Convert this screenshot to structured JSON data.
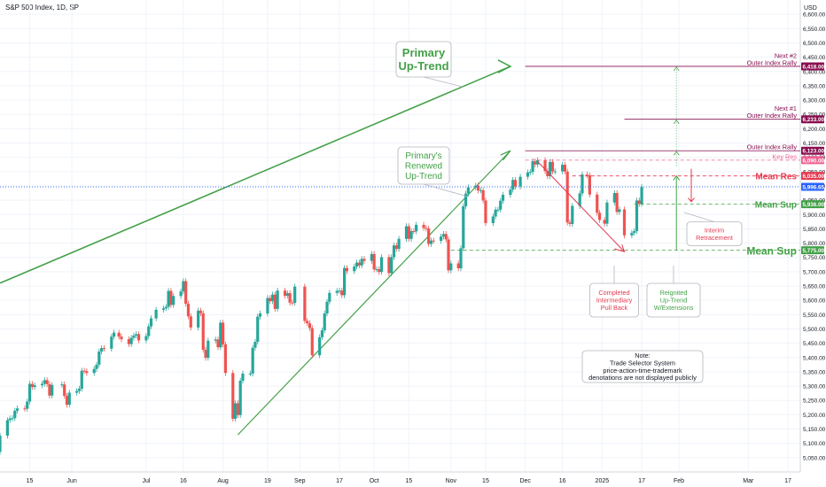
{
  "title": "S&P 500 Index, 1D, SP",
  "currency": "USD",
  "chart_data": {
    "type": "candlestick",
    "ylim": [
      5000,
      6650
    ],
    "y_ticks": [
      6600,
      6550,
      6500,
      6450,
      6400,
      6350,
      6300,
      6250,
      6200,
      6150,
      6100,
      6050,
      6000,
      5950,
      5900,
      5850,
      5800,
      5750,
      5700,
      5650,
      5600,
      5550,
      5500,
      5450,
      5400,
      5350,
      5300,
      5250,
      5200,
      5150,
      5100,
      5050
    ],
    "x_ticks": [
      "15",
      "Jun",
      "Jul",
      "16",
      "Aug",
      "19",
      "Sep",
      "17",
      "Oct",
      "15",
      "Nov",
      "15",
      "Dec",
      "16",
      "2025",
      "17",
      "Feb",
      "Mar",
      "17"
    ],
    "x_tick_dates": [
      "2024-05-15",
      "2024-06-01",
      "2024-07-01",
      "2024-07-16",
      "2024-08-01",
      "2024-08-19",
      "2024-09-01",
      "2024-09-17",
      "2024-10-01",
      "2024-10-15",
      "2024-11-01",
      "2024-11-15",
      "2024-12-01",
      "2024-12-16",
      "2025-01-01",
      "2025-01-17",
      "2025-02-01",
      "2025-03-01",
      "2025-03-17"
    ],
    "x_range": [
      "2024-05-03",
      "2025-03-22"
    ],
    "candles": [
      [
        "2024-05-03",
        5070,
        5127
      ],
      [
        "2024-05-06",
        5127,
        5181
      ],
      [
        "2024-05-07",
        5181,
        5187
      ],
      [
        "2024-05-08",
        5187,
        5188
      ],
      [
        "2024-05-09",
        5188,
        5214
      ],
      [
        "2024-05-10",
        5214,
        5222
      ],
      [
        "2024-05-13",
        5222,
        5221
      ],
      [
        "2024-05-14",
        5221,
        5246
      ],
      [
        "2024-05-15",
        5246,
        5308
      ],
      [
        "2024-05-16",
        5308,
        5297
      ],
      [
        "2024-05-17",
        5297,
        5303
      ],
      [
        "2024-05-20",
        5303,
        5308
      ],
      [
        "2024-05-21",
        5308,
        5321
      ],
      [
        "2024-05-22",
        5321,
        5307
      ],
      [
        "2024-05-23",
        5307,
        5267
      ],
      [
        "2024-05-24",
        5267,
        5304
      ],
      [
        "2024-05-28",
        5304,
        5306
      ],
      [
        "2024-05-29",
        5306,
        5266
      ],
      [
        "2024-05-30",
        5266,
        5235
      ],
      [
        "2024-05-31",
        5235,
        5277
      ],
      [
        "2024-06-03",
        5277,
        5283
      ],
      [
        "2024-06-04",
        5283,
        5291
      ],
      [
        "2024-06-05",
        5291,
        5354
      ],
      [
        "2024-06-06",
        5354,
        5352
      ],
      [
        "2024-06-07",
        5352,
        5346
      ],
      [
        "2024-06-10",
        5346,
        5360
      ],
      [
        "2024-06-11",
        5360,
        5375
      ],
      [
        "2024-06-12",
        5375,
        5421
      ],
      [
        "2024-06-13",
        5421,
        5433
      ],
      [
        "2024-06-14",
        5433,
        5431
      ],
      [
        "2024-06-17",
        5431,
        5473
      ],
      [
        "2024-06-18",
        5473,
        5487
      ],
      [
        "2024-06-20",
        5487,
        5473
      ],
      [
        "2024-06-21",
        5473,
        5464
      ],
      [
        "2024-06-24",
        5464,
        5447
      ],
      [
        "2024-06-25",
        5447,
        5469
      ],
      [
        "2024-06-26",
        5469,
        5477
      ],
      [
        "2024-06-27",
        5477,
        5482
      ],
      [
        "2024-06-28",
        5482,
        5460
      ],
      [
        "2024-07-01",
        5460,
        5475
      ],
      [
        "2024-07-02",
        5475,
        5509
      ],
      [
        "2024-07-03",
        5509,
        5537
      ],
      [
        "2024-07-05",
        5537,
        5567
      ],
      [
        "2024-07-08",
        5567,
        5572
      ],
      [
        "2024-07-09",
        5572,
        5577
      ],
      [
        "2024-07-10",
        5577,
        5633
      ],
      [
        "2024-07-11",
        5633,
        5584
      ],
      [
        "2024-07-12",
        5584,
        5615
      ],
      [
        "2024-07-15",
        5615,
        5631
      ],
      [
        "2024-07-16",
        5631,
        5667
      ],
      [
        "2024-07-17",
        5667,
        5588
      ],
      [
        "2024-07-18",
        5588,
        5544
      ],
      [
        "2024-07-19",
        5544,
        5505
      ],
      [
        "2024-07-22",
        5505,
        5564
      ],
      [
        "2024-07-23",
        5564,
        5555
      ],
      [
        "2024-07-24",
        5555,
        5427
      ],
      [
        "2024-07-25",
        5427,
        5399
      ],
      [
        "2024-07-26",
        5399,
        5459
      ],
      [
        "2024-07-29",
        5459,
        5463
      ],
      [
        "2024-07-30",
        5463,
        5436
      ],
      [
        "2024-07-31",
        5436,
        5522
      ],
      [
        "2024-08-01",
        5522,
        5446
      ],
      [
        "2024-08-02",
        5446,
        5346
      ],
      [
        "2024-08-05",
        5346,
        5186
      ],
      [
        "2024-08-06",
        5186,
        5240
      ],
      [
        "2024-08-07",
        5240,
        5199
      ],
      [
        "2024-08-08",
        5199,
        5319
      ],
      [
        "2024-08-09",
        5319,
        5344
      ],
      [
        "2024-08-12",
        5344,
        5344
      ],
      [
        "2024-08-13",
        5344,
        5434
      ],
      [
        "2024-08-14",
        5434,
        5455
      ],
      [
        "2024-08-15",
        5455,
        5543
      ],
      [
        "2024-08-16",
        5543,
        5554
      ],
      [
        "2024-08-19",
        5554,
        5608
      ],
      [
        "2024-08-20",
        5608,
        5597
      ],
      [
        "2024-08-21",
        5597,
        5620
      ],
      [
        "2024-08-22",
        5620,
        5570
      ],
      [
        "2024-08-23",
        5570,
        5634
      ],
      [
        "2024-08-26",
        5634,
        5616
      ],
      [
        "2024-08-27",
        5616,
        5625
      ],
      [
        "2024-08-28",
        5625,
        5592
      ],
      [
        "2024-08-29",
        5592,
        5591
      ],
      [
        "2024-08-30",
        5591,
        5648
      ],
      [
        "2024-09-03",
        5648,
        5528
      ],
      [
        "2024-09-04",
        5528,
        5520
      ],
      [
        "2024-09-05",
        5520,
        5503
      ],
      [
        "2024-09-06",
        5503,
        5408
      ],
      [
        "2024-09-09",
        5408,
        5471
      ],
      [
        "2024-09-10",
        5471,
        5495
      ],
      [
        "2024-09-11",
        5495,
        5554
      ],
      [
        "2024-09-12",
        5554,
        5595
      ],
      [
        "2024-09-13",
        5595,
        5626
      ],
      [
        "2024-09-16",
        5626,
        5633
      ],
      [
        "2024-09-17",
        5633,
        5634
      ],
      [
        "2024-09-18",
        5634,
        5618
      ],
      [
        "2024-09-19",
        5618,
        5713
      ],
      [
        "2024-09-20",
        5713,
        5702
      ],
      [
        "2024-09-23",
        5702,
        5718
      ],
      [
        "2024-09-24",
        5718,
        5732
      ],
      [
        "2024-09-25",
        5732,
        5722
      ],
      [
        "2024-09-26",
        5722,
        5745
      ],
      [
        "2024-09-27",
        5745,
        5738
      ],
      [
        "2024-09-30",
        5738,
        5762
      ],
      [
        "2024-10-01",
        5762,
        5708
      ],
      [
        "2024-10-02",
        5708,
        5709
      ],
      [
        "2024-10-03",
        5709,
        5699
      ],
      [
        "2024-10-04",
        5699,
        5751
      ],
      [
        "2024-10-07",
        5751,
        5695
      ],
      [
        "2024-10-08",
        5695,
        5751
      ],
      [
        "2024-10-09",
        5751,
        5792
      ],
      [
        "2024-10-10",
        5792,
        5780
      ],
      [
        "2024-10-11",
        5780,
        5815
      ],
      [
        "2024-10-14",
        5815,
        5859
      ],
      [
        "2024-10-15",
        5859,
        5815
      ],
      [
        "2024-10-16",
        5815,
        5842
      ],
      [
        "2024-10-17",
        5842,
        5841
      ],
      [
        "2024-10-18",
        5841,
        5864
      ],
      [
        "2024-10-21",
        5864,
        5853
      ],
      [
        "2024-10-22",
        5853,
        5851
      ],
      [
        "2024-10-23",
        5851,
        5797
      ],
      [
        "2024-10-24",
        5797,
        5809
      ],
      [
        "2024-10-25",
        5809,
        5808
      ],
      [
        "2024-10-28",
        5808,
        5823
      ],
      [
        "2024-10-29",
        5823,
        5832
      ],
      [
        "2024-10-30",
        5832,
        5813
      ],
      [
        "2024-10-31",
        5813,
        5705
      ],
      [
        "2024-11-01",
        5705,
        5729
      ],
      [
        "2024-11-04",
        5729,
        5712
      ],
      [
        "2024-11-05",
        5712,
        5782
      ],
      [
        "2024-11-06",
        5782,
        5929
      ],
      [
        "2024-11-07",
        5929,
        5973
      ],
      [
        "2024-11-08",
        5973,
        5995
      ],
      [
        "2024-11-11",
        5995,
        6001
      ],
      [
        "2024-11-12",
        6001,
        5984
      ],
      [
        "2024-11-13",
        5984,
        5985
      ],
      [
        "2024-11-14",
        5985,
        5949
      ],
      [
        "2024-11-15",
        5949,
        5870
      ],
      [
        "2024-11-18",
        5870,
        5893
      ],
      [
        "2024-11-19",
        5893,
        5917
      ],
      [
        "2024-11-20",
        5917,
        5917
      ],
      [
        "2024-11-21",
        5917,
        5948
      ],
      [
        "2024-11-22",
        5948,
        5969
      ],
      [
        "2024-11-25",
        5969,
        5987
      ],
      [
        "2024-11-26",
        5987,
        6021
      ],
      [
        "2024-11-27",
        6021,
        5998
      ],
      [
        "2024-11-29",
        5998,
        6032
      ],
      [
        "2024-12-02",
        6032,
        6047
      ],
      [
        "2024-12-03",
        6047,
        6049
      ],
      [
        "2024-12-04",
        6049,
        6086
      ],
      [
        "2024-12-05",
        6086,
        6075
      ],
      [
        "2024-12-06",
        6075,
        6090
      ],
      [
        "2024-12-09",
        6090,
        6052
      ],
      [
        "2024-12-10",
        6052,
        6034
      ],
      [
        "2024-12-11",
        6034,
        6084
      ],
      [
        "2024-12-12",
        6084,
        6051
      ],
      [
        "2024-12-13",
        6051,
        6051
      ],
      [
        "2024-12-16",
        6051,
        6074
      ],
      [
        "2024-12-17",
        6074,
        6050
      ],
      [
        "2024-12-18",
        6050,
        5872
      ],
      [
        "2024-12-19",
        5872,
        5867
      ],
      [
        "2024-12-20",
        5867,
        5930
      ],
      [
        "2024-12-23",
        5930,
        5974
      ],
      [
        "2024-12-24",
        5974,
        6040
      ],
      [
        "2024-12-26",
        6040,
        6037
      ],
      [
        "2024-12-27",
        6037,
        5970
      ],
      [
        "2024-12-30",
        5970,
        5906
      ],
      [
        "2024-12-31",
        5906,
        5881
      ],
      [
        "2025-01-02",
        5881,
        5868
      ],
      [
        "2025-01-03",
        5868,
        5942
      ],
      [
        "2025-01-06",
        5942,
        5975
      ],
      [
        "2025-01-07",
        5975,
        5909
      ],
      [
        "2025-01-08",
        5909,
        5918
      ],
      [
        "2025-01-10",
        5918,
        5827
      ],
      [
        "2025-01-13",
        5827,
        5836
      ],
      [
        "2025-01-14",
        5836,
        5842
      ],
      [
        "2025-01-15",
        5842,
        5949
      ],
      [
        "2025-01-16",
        5949,
        5937
      ],
      [
        "2025-01-17",
        5937,
        5996
      ]
    ],
    "levels": [
      {
        "label": "Outer Index Rally",
        "prefix": "Next #2",
        "value": 6418,
        "badge": "6,418.00",
        "color": "#880e4f",
        "style": "solid",
        "x_from": "2024-12-01"
      },
      {
        "label": "Outer Index Rally",
        "prefix": "Next #1",
        "value": 6233,
        "badge": "6,233.00",
        "color": "#880e4f",
        "style": "solid",
        "x_from": "2025-01-10"
      },
      {
        "label": "Outer Index Rally",
        "prefix": "",
        "value": 6123,
        "badge": "6,123.00",
        "color": "#880e4f",
        "style": "solid",
        "x_from": "2024-12-01"
      },
      {
        "label": "Key Res",
        "prefix": "",
        "value": 6090,
        "badge": "6,090.00",
        "color": "#f06292",
        "style": "dashed",
        "x_from": "2024-12-01"
      },
      {
        "label": "Mean Res",
        "prefix": "",
        "value": 6035,
        "badge": "6,035.00",
        "color": "#e53950",
        "style": "dashed",
        "x_from": "2024-12-20"
      },
      {
        "label": "",
        "prefix": "",
        "value": 5996.65,
        "badge": "5,996.65",
        "color": "#2962ff",
        "style": "dotted",
        "x_from": "2024-05-03"
      },
      {
        "label": "Mean Sup",
        "prefix": "",
        "value": 5936,
        "badge": "5,936.00",
        "color": "#43a047",
        "style": "dashed",
        "x_from": "2025-01-14"
      },
      {
        "label": "Mean Sup",
        "prefix": "",
        "value": 5775,
        "badge": "5,775.00",
        "color": "#43a047",
        "style": "dashed",
        "x_from": "2024-11-01"
      }
    ],
    "callouts": [
      {
        "text": [
          "Primary",
          "Up-Trend"
        ],
        "color": "#43a047"
      },
      {
        "text": [
          "Primary's",
          "Renewed",
          "Up-Trend"
        ],
        "color": "#43a047"
      },
      {
        "text": [
          "Interim",
          "Retracement"
        ],
        "color": "#e53950"
      },
      {
        "text": [
          "Completed",
          "Intermediary",
          "Pull Back"
        ],
        "color": "#e53950"
      },
      {
        "text": [
          "Reignited",
          "Up-Trend",
          "W/Extensions"
        ],
        "color": "#43a047"
      },
      {
        "text": [
          "Note:",
          "Trade Selector System",
          "price-action-time-trademark",
          "denotations are not displayed publicly"
        ],
        "color": "#131722"
      }
    ],
    "colors": {
      "up": "#26a69a",
      "down": "#ef5350",
      "grid": "#f0f3fa",
      "axis_text": "#131722"
    }
  }
}
